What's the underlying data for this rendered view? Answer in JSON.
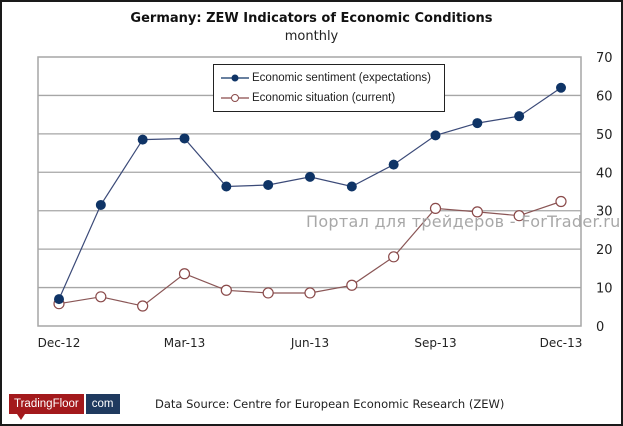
{
  "chart_data": {
    "type": "line",
    "title": "Germany:  ZEW Indicators of Economic Conditions",
    "subtitle": "monthly",
    "xlabel": "",
    "ylabel": "",
    "y_axis_position": "right",
    "ylim": [
      0,
      70
    ],
    "yticks": [
      "0",
      "10",
      "20",
      "30",
      "40",
      "50",
      "60",
      "70"
    ],
    "grid": true,
    "legend_position": "top-center",
    "x": [
      "Dec-12",
      "Jan-13",
      "Feb-13",
      "Mar-13",
      "Apr-13",
      "May-13",
      "Jun-13",
      "Jul-13",
      "Aug-13",
      "Sep-13",
      "Oct-13",
      "Nov-13",
      "Dec-13"
    ],
    "xtick_labels": [
      {
        "index": 0,
        "label": "Dec-12"
      },
      {
        "index": 3,
        "label": "Mar-13"
      },
      {
        "index": 6,
        "label": "Jun-13"
      },
      {
        "index": 9,
        "label": "Sep-13"
      },
      {
        "index": 12,
        "label": "Dec-13"
      }
    ],
    "series": [
      {
        "name": "Economic sentiment (expectations)",
        "color": "#0f3466",
        "marker": "filled-circle",
        "values": [
          7.0,
          31.5,
          48.5,
          48.8,
          36.3,
          36.7,
          38.8,
          36.3,
          42.0,
          49.6,
          52.8,
          54.6,
          62.0
        ]
      },
      {
        "name": "Economic situation (current)",
        "color": "#8a4a4a",
        "marker": "open-circle",
        "values": [
          5.8,
          7.6,
          5.2,
          13.6,
          9.3,
          8.6,
          8.6,
          10.6,
          18.0,
          30.6,
          29.7,
          28.7,
          32.4
        ]
      }
    ]
  },
  "watermark": "Портал для трейдеров - ForTrader.ru",
  "footer": {
    "logo_left": "TradingFloor",
    "logo_right": "com",
    "source": "Data Source:  Centre  for European  Economic Research (ZEW)"
  }
}
